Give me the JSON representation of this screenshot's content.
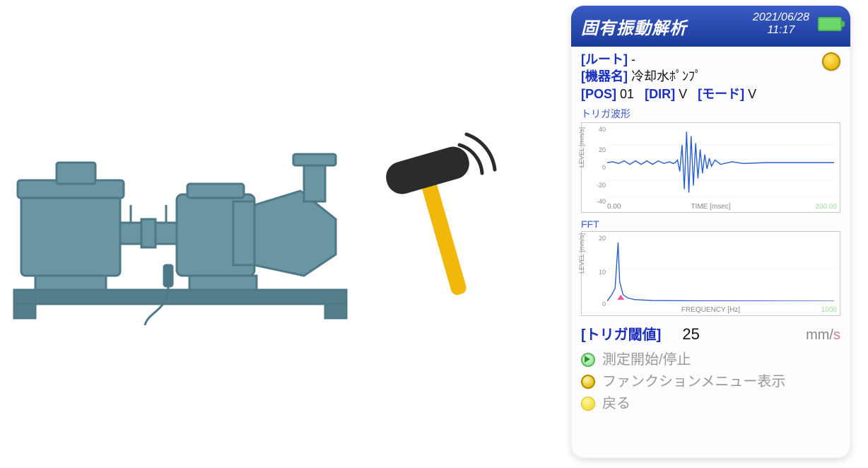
{
  "illustration": {
    "pump_color": "#6a95a3",
    "pump_stroke": "#4f7886",
    "base_color": "#567f8d",
    "hammer_head": "#2b2b2b",
    "hammer_handle": "#f1b80a",
    "impact_arc": "#2b2b2b"
  },
  "device": {
    "titlebar": {
      "title": "固有振動解析",
      "date": "2021/06/28",
      "time": "11:17",
      "bg_grad_top": "#3a5bc4",
      "bg_grad_bottom": "#1a3a9a",
      "battery_color": "#6cd86c"
    },
    "info": {
      "route_label": "[ルート]",
      "route_value": "-",
      "device_label": "[機器名]",
      "device_value": "冷却水ﾎﾟﾝﾌﾟ",
      "pos_label": "[POS]",
      "pos_value": "01",
      "dir_label": "[DIR]",
      "dir_value": "V",
      "mode_label": "[モード]",
      "mode_value": "V"
    },
    "waveform": {
      "section_label": "トリガ波形",
      "type": "line",
      "ylabel": "LEVEL [mm/s]",
      "xlabel": "TIME [msec]",
      "xstart": "0.00",
      "xend": "200.00",
      "ylim": [
        -40,
        40
      ],
      "ytick_step": 20,
      "line_color": "#2a5fd0",
      "grid_color": "#e8e8e8",
      "points": [
        [
          0,
          0
        ],
        [
          5,
          1
        ],
        [
          10,
          -1
        ],
        [
          15,
          2
        ],
        [
          20,
          -2
        ],
        [
          25,
          2
        ],
        [
          30,
          -2
        ],
        [
          35,
          2
        ],
        [
          40,
          -2
        ],
        [
          45,
          2
        ],
        [
          50,
          -1
        ],
        [
          55,
          1
        ],
        [
          58,
          -1
        ],
        [
          60,
          0
        ],
        [
          62,
          3
        ],
        [
          64,
          -10
        ],
        [
          66,
          20
        ],
        [
          68,
          -30
        ],
        [
          70,
          35
        ],
        [
          72,
          -34
        ],
        [
          74,
          30
        ],
        [
          76,
          -26
        ],
        [
          78,
          22
        ],
        [
          80,
          -18
        ],
        [
          82,
          15
        ],
        [
          84,
          -12
        ],
        [
          86,
          9
        ],
        [
          88,
          -7
        ],
        [
          90,
          5
        ],
        [
          92,
          -4
        ],
        [
          95,
          3
        ],
        [
          100,
          -2
        ],
        [
          110,
          1
        ],
        [
          120,
          -1
        ],
        [
          140,
          0
        ],
        [
          200,
          0
        ]
      ]
    },
    "fft": {
      "section_label": "FFT",
      "type": "line",
      "ylabel": "LEVEL [mm/s]",
      "xlabel": "FREQUENCY [Hz]",
      "xend": "1000",
      "ylim": [
        0,
        20
      ],
      "ytick_step": 10,
      "line_color": "#2a5fd0",
      "marker_color": "#e85aa0",
      "grid_color": "#e8e8e8",
      "points": [
        [
          0,
          0
        ],
        [
          20,
          2
        ],
        [
          35,
          4
        ],
        [
          48,
          18
        ],
        [
          55,
          6
        ],
        [
          70,
          2
        ],
        [
          90,
          1
        ],
        [
          120,
          0.5
        ],
        [
          200,
          0.2
        ],
        [
          400,
          0.1
        ],
        [
          1000,
          0
        ]
      ],
      "marker_x": 60
    },
    "threshold": {
      "label": "[トリガ閾値]",
      "value": "25",
      "unit_mm": "mm/",
      "unit_s": "s"
    },
    "actions": {
      "start_stop": "測定開始/停止",
      "func_menu": "ファンクションメニュー表示",
      "back": "戻る"
    }
  }
}
